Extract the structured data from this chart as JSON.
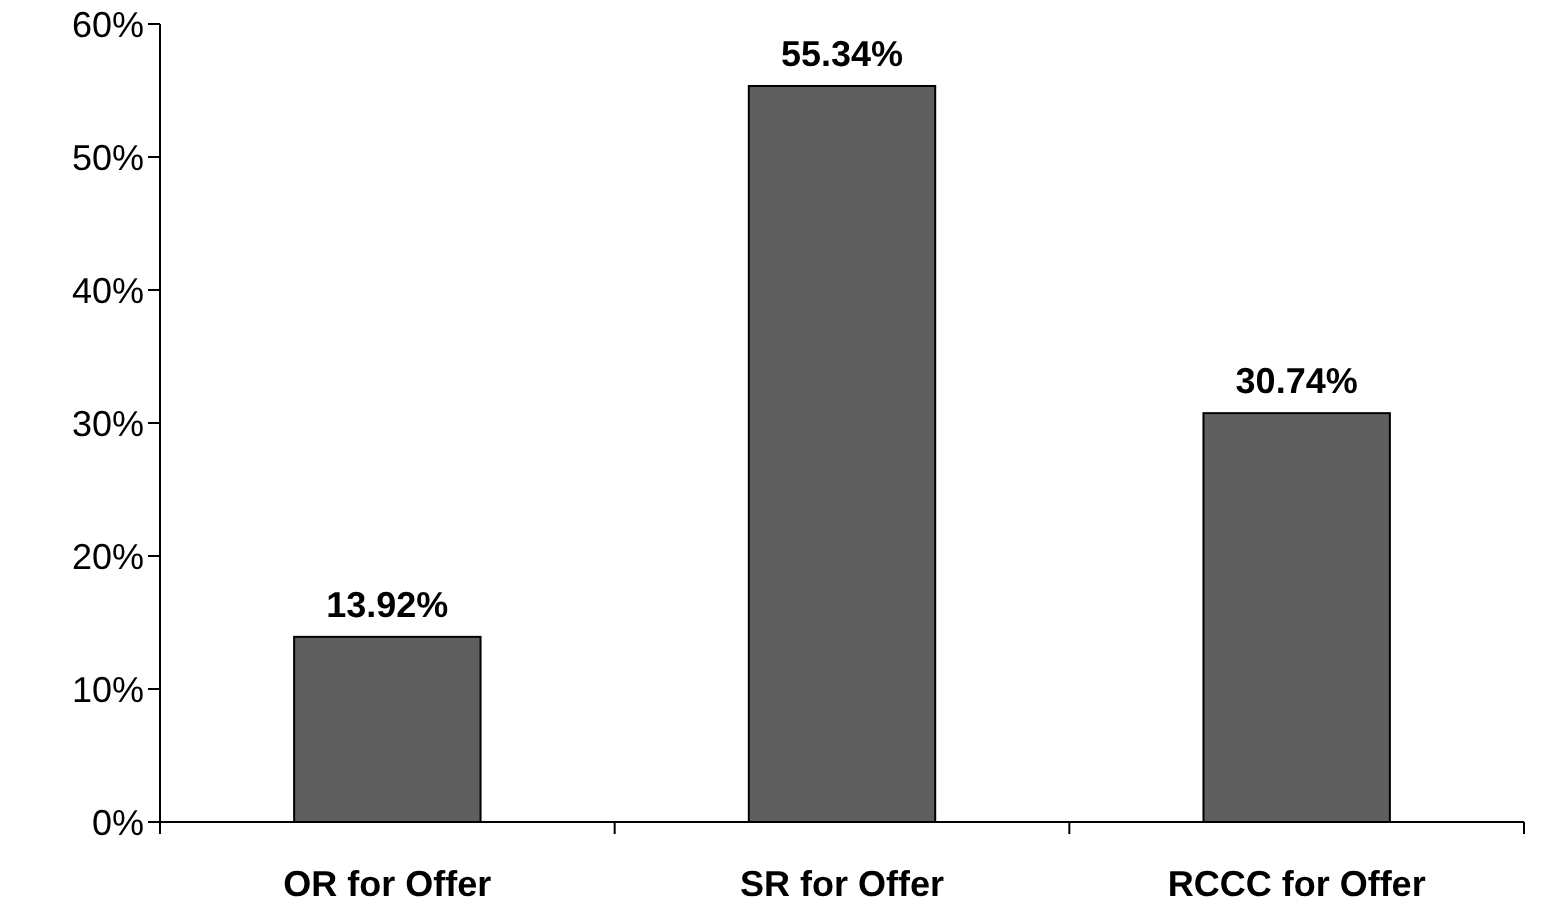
{
  "chart_data": {
    "type": "bar",
    "categories": [
      "OR for Offer",
      "SR for Offer",
      "RCCC for Offer"
    ],
    "values": [
      13.92,
      55.34,
      30.74
    ],
    "color": "#5f5f5f",
    "value_labels": [
      "13.92%",
      "55.34%",
      "30.74%"
    ],
    "ylim": [
      0,
      60
    ],
    "yticks": [
      {
        "value": 0,
        "label": "0%"
      },
      {
        "value": 10,
        "label": "10%"
      },
      {
        "value": 20,
        "label": "20%"
      },
      {
        "value": 30,
        "label": "30%"
      },
      {
        "value": 40,
        "label": "40%"
      },
      {
        "value": 50,
        "label": "50%"
      },
      {
        "value": 60,
        "label": "60%"
      }
    ],
    "grid": false
  }
}
